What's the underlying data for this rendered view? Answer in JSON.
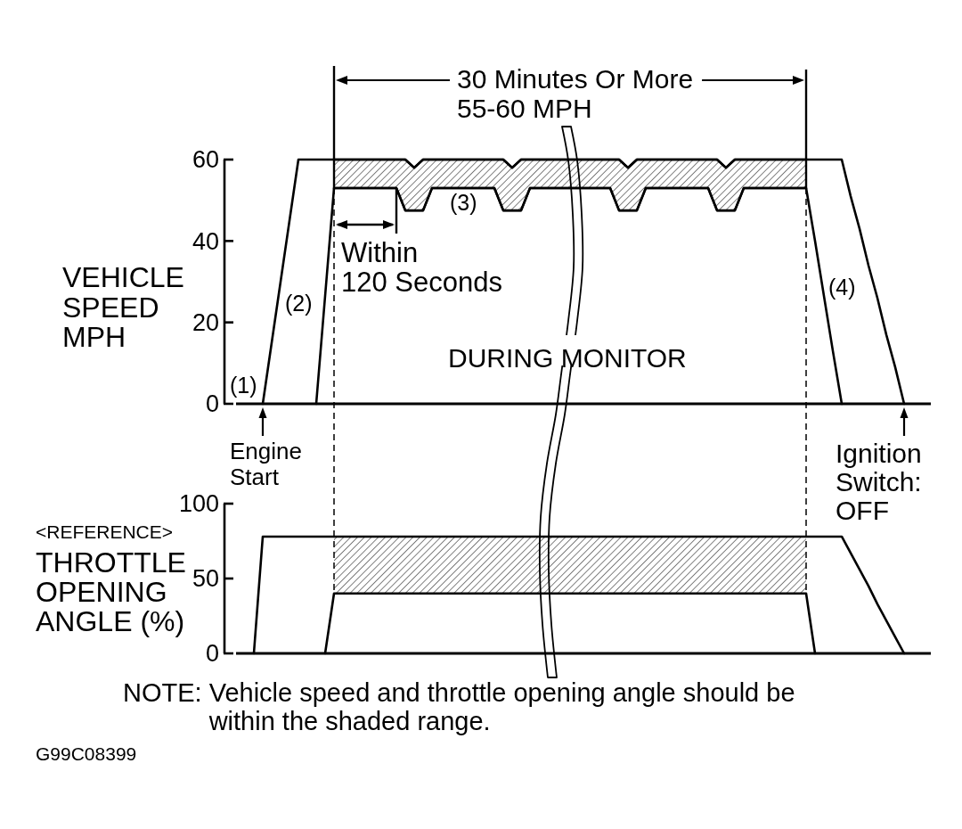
{
  "chart_data": [
    {
      "type": "line",
      "ylabel": "VEHICLE\nSPEED\nMPH",
      "categories": [
        null,
        null,
        null,
        null,
        null,
        null,
        null,
        null,
        null,
        null,
        null,
        null,
        null,
        null,
        null,
        null,
        null,
        null,
        null,
        null,
        null,
        null,
        null,
        null,
        null,
        null,
        null,
        null,
        null,
        null,
        null,
        null,
        null,
        null,
        null,
        null,
        null,
        null,
        null,
        null,
        null,
        null,
        null,
        null,
        null,
        null,
        null,
        null,
        null,
        null,
        null,
        null,
        null,
        null,
        null,
        null,
        null,
        null,
        null,
        null,
        null,
        null,
        null,
        null,
        null,
        null,
        null,
        null,
        null,
        null,
        null,
        null,
        null,
        null,
        null,
        null,
        null,
        null,
        null
      ],
      "ylim": [
        0,
        60
      ],
      "yticks": [
        0,
        20,
        40,
        60
      ],
      "tick_labels": "y",
      "series": [
        {
          "color": "#000000",
          "values": [
            null,
            null,
            null,
            0,
            15,
            30,
            45,
            60,
            60,
            60,
            60,
            60,
            60,
            60,
            60,
            60,
            60,
            60,
            60,
            60,
            58,
            60,
            60,
            60,
            60,
            60,
            60,
            60,
            60,
            60,
            60,
            58,
            60,
            60,
            60,
            60,
            60,
            60,
            60,
            60,
            60,
            60,
            60,
            60,
            58,
            60,
            60,
            60,
            60,
            60,
            60,
            60,
            60,
            60,
            60,
            58,
            60,
            60,
            60,
            60,
            60,
            60,
            60,
            60,
            60,
            60,
            60,
            60,
            60,
            51,
            43,
            34,
            26,
            17,
            9,
            0,
            null,
            null,
            null
          ]
        },
        {
          "color": "#000000",
          "values": [
            null,
            null,
            null,
            null,
            null,
            null,
            null,
            null,
            null,
            0,
            26.5,
            53,
            53,
            53,
            53,
            53,
            53,
            53,
            53,
            47.5,
            47.5,
            47.5,
            53,
            53,
            53,
            53,
            53,
            53,
            53,
            53,
            47.5,
            47.5,
            47.5,
            53,
            53,
            53,
            53,
            53,
            53,
            53,
            53,
            53,
            53,
            47.5,
            47.5,
            47.5,
            53,
            53,
            53,
            53,
            53,
            53,
            53,
            53,
            47.5,
            47.5,
            47.5,
            53,
            53,
            53,
            53,
            53,
            53,
            53,
            53,
            40,
            26.5,
            13,
            0,
            null,
            null,
            null,
            null,
            null,
            null,
            null,
            null,
            null,
            null
          ],
          "lower": [
            null,
            null,
            null,
            null,
            null,
            null,
            null,
            null,
            null,
            null,
            null,
            53,
            53,
            53,
            53,
            53,
            53,
            53,
            53,
            47.5,
            47.5,
            47.5,
            53,
            53,
            53,
            53,
            53,
            53,
            53,
            53,
            47.5,
            47.5,
            47.5,
            53,
            53,
            53,
            53,
            53,
            53,
            53,
            53,
            53,
            53,
            47.5,
            47.5,
            47.5,
            53,
            53,
            53,
            53,
            53,
            53,
            53,
            53,
            47.5,
            47.5,
            47.5,
            53,
            53,
            53,
            53,
            53,
            53,
            53,
            53,
            null,
            null,
            null,
            null,
            null,
            null,
            null,
            null,
            null,
            null,
            null,
            null,
            null,
            null
          ],
          "upper": [
            null,
            null,
            null,
            null,
            null,
            null,
            null,
            null,
            null,
            null,
            null,
            60,
            60,
            60,
            60,
            60,
            60,
            60,
            60,
            60,
            58,
            60,
            60,
            60,
            60,
            60,
            60,
            60,
            60,
            60,
            60,
            58,
            60,
            60,
            60,
            60,
            60,
            60,
            60,
            60,
            60,
            60,
            60,
            60,
            58,
            60,
            60,
            60,
            60,
            60,
            60,
            60,
            60,
            60,
            60,
            58,
            60,
            60,
            60,
            60,
            60,
            60,
            60,
            60,
            60,
            null,
            null,
            null,
            null,
            null,
            null,
            null,
            null,
            null,
            null,
            null,
            null,
            null,
            null
          ]
        }
      ],
      "annotations": [
        "30 Minutes Or More",
        "55-60 MPH",
        "Within\n120 Seconds",
        "(1)",
        "(2)",
        "(3)",
        "(4)",
        "DURING MONITOR",
        "Engine\nStart",
        "Ignition\nSwitch:\nOFF"
      ]
    },
    {
      "type": "line",
      "ylabel": "<REFERENCE>\nTHROTTLE\nOPENING\nANGLE (%)",
      "categories": [
        null,
        null,
        null,
        null,
        null,
        null,
        null,
        null,
        null,
        null,
        null,
        null,
        null,
        null,
        null,
        null,
        null,
        null,
        null,
        null,
        null,
        null,
        null,
        null,
        null,
        null,
        null,
        null,
        null,
        null,
        null,
        null,
        null,
        null,
        null,
        null,
        null,
        null,
        null,
        null,
        null,
        null,
        null,
        null,
        null,
        null,
        null,
        null,
        null,
        null,
        null,
        null,
        null,
        null,
        null,
        null,
        null,
        null,
        null,
        null,
        null,
        null,
        null,
        null,
        null,
        null,
        null,
        null,
        null,
        null,
        null,
        null,
        null,
        null,
        null,
        null,
        null,
        null,
        null
      ],
      "ylim": [
        0,
        100
      ],
      "yticks": [
        0,
        50,
        100
      ],
      "tick_labels": "y",
      "series": [
        {
          "color": "#000000",
          "values": [
            null,
            null,
            0,
            78,
            78,
            78,
            78,
            78,
            78,
            78,
            78,
            78,
            78,
            78,
            78,
            78,
            78,
            78,
            78,
            78,
            78,
            78,
            78,
            78,
            78,
            78,
            78,
            78,
            78,
            78,
            78,
            78,
            78,
            78,
            78,
            78,
            78,
            78,
            78,
            78,
            78,
            78,
            78,
            78,
            78,
            78,
            78,
            78,
            78,
            78,
            78,
            78,
            78,
            78,
            78,
            78,
            78,
            78,
            78,
            78,
            78,
            78,
            78,
            78,
            78,
            78,
            78,
            78,
            78,
            67,
            56,
            45,
            33,
            22,
            11,
            0,
            null,
            null,
            null
          ]
        },
        {
          "color": "#000000",
          "values": [
            null,
            null,
            null,
            null,
            null,
            null,
            null,
            null,
            null,
            null,
            0,
            40,
            40,
            40,
            40,
            40,
            40,
            40,
            40,
            40,
            40,
            40,
            40,
            40,
            40,
            40,
            40,
            40,
            40,
            40,
            40,
            40,
            40,
            40,
            40,
            40,
            40,
            40,
            40,
            40,
            40,
            40,
            40,
            40,
            40,
            40,
            40,
            40,
            40,
            40,
            40,
            40,
            40,
            40,
            40,
            40,
            40,
            40,
            40,
            40,
            40,
            40,
            40,
            40,
            40,
            0,
            null,
            null,
            null,
            null,
            null,
            null,
            null,
            null,
            null,
            null,
            null,
            null,
            null
          ],
          "lower": [
            null,
            null,
            null,
            null,
            null,
            null,
            null,
            null,
            null,
            null,
            null,
            40,
            40,
            40,
            40,
            40,
            40,
            40,
            40,
            40,
            40,
            40,
            40,
            40,
            40,
            40,
            40,
            40,
            40,
            40,
            40,
            40,
            40,
            40,
            40,
            40,
            40,
            40,
            40,
            40,
            40,
            40,
            40,
            40,
            40,
            40,
            40,
            40,
            40,
            40,
            40,
            40,
            40,
            40,
            40,
            40,
            40,
            40,
            40,
            40,
            40,
            40,
            40,
            40,
            40,
            null,
            null,
            null,
            null,
            null,
            null,
            null,
            null,
            null,
            null,
            null,
            null,
            null,
            null
          ],
          "upper": [
            null,
            null,
            null,
            null,
            null,
            null,
            null,
            null,
            null,
            null,
            null,
            78,
            78,
            78,
            78,
            78,
            78,
            78,
            78,
            78,
            78,
            78,
            78,
            78,
            78,
            78,
            78,
            78,
            78,
            78,
            78,
            78,
            78,
            78,
            78,
            78,
            78,
            78,
            78,
            78,
            78,
            78,
            78,
            78,
            78,
            78,
            78,
            78,
            78,
            78,
            78,
            78,
            78,
            78,
            78,
            78,
            78,
            78,
            78,
            78,
            78,
            78,
            78,
            78,
            78,
            null,
            null,
            null,
            null,
            null,
            null,
            null,
            null,
            null,
            null,
            null,
            null,
            null,
            null
          ]
        }
      ],
      "annotations": [
        "NOTE: Vehicle speed and throttle opening angle should be\nwithin the shaded range.",
        "G99C08399"
      ]
    }
  ]
}
